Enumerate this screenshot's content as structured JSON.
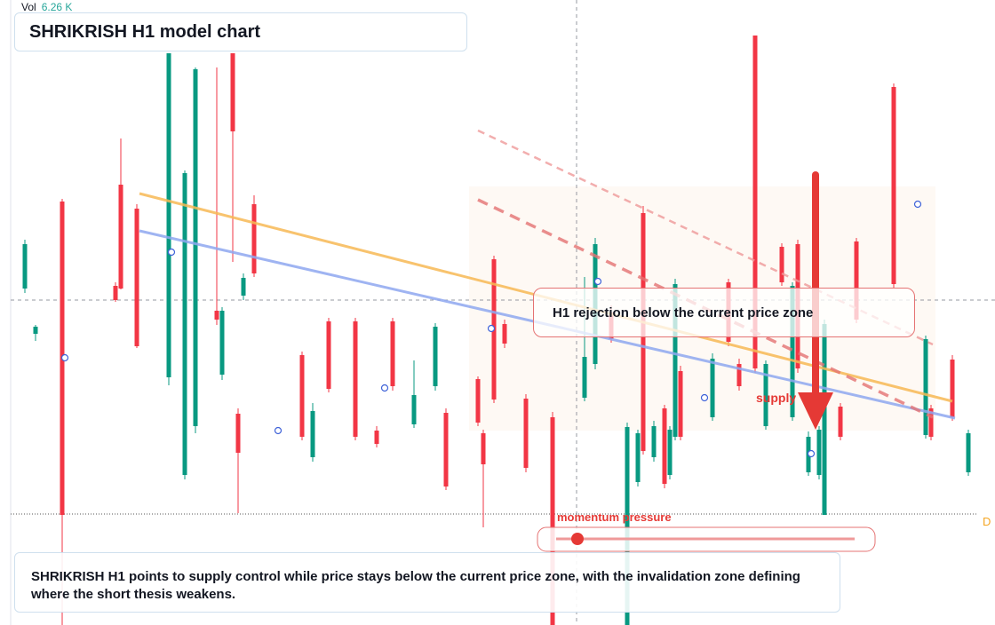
{
  "chart_data": {
    "type": "candlestick",
    "title": "SHRIKRISH H1 model chart",
    "volume_label": "Vol",
    "volume_value": "6.26 K",
    "annotations": {
      "callout": "H1 rejection below the current price zone",
      "supply": "supply",
      "momentum": "momentum pressure",
      "marker": "D"
    },
    "caption": "SHRIKRISH H1 points to supply control while price stays below the current price zone, with the invalidation zone defining where the short thesis weakens.",
    "up_color": "#089981",
    "down_color": "#f23645",
    "xlim": [
      0,
      185
    ],
    "ylim": [
      100,
      135.2
    ],
    "x": [
      3,
      5,
      10,
      20,
      21,
      24,
      30,
      33,
      35,
      39,
      40,
      42,
      43,
      44,
      46,
      55,
      57,
      60,
      65,
      69,
      72,
      76,
      80,
      82,
      88,
      89,
      91,
      93,
      97,
      102,
      108,
      110,
      113,
      116,
      118,
      119,
      121,
      123,
      124,
      125,
      126,
      132,
      135,
      137,
      140,
      142,
      145,
      147,
      148,
      150,
      152,
      153,
      156,
      159,
      166,
      172,
      173,
      177,
      180
    ],
    "open": [
      118.95,
      116.4,
      123.85,
      119.1,
      124.8,
      123.45,
      113.95,
      108.45,
      111.2,
      117.7,
      114.1,
      132.2,
      111.9,
      118.55,
      123.7,
      115.2,
      109.45,
      117.1,
      117.1,
      110.95,
      117.1,
      111.3,
      113.45,
      111.95,
      113.85,
      110.8,
      120.6,
      116.95,
      112.75,
      111.7,
      112.8,
      114.7,
      117.6,
      100.0,
      108.05,
      123.2,
      109.45,
      112.2,
      108.45,
      110.6,
      114.3,
      111.7,
      119.3,
      114.7,
      133.2,
      111.2,
      121.3,
      111.7,
      121.45,
      108.6,
      108.45,
      106.2,
      112.3,
      121.6,
      130.3,
      110.7,
      112.2,
      114.95,
      108.6
    ],
    "high": [
      121.7,
      116.9,
      124.0,
      119.3,
      127.4,
      123.7,
      132.2,
      125.6,
      131.4,
      131.4,
      117.9,
      132.2,
      112.2,
      119.8,
      124.2,
      115.4,
      112.5,
      117.3,
      117.3,
      111.2,
      117.3,
      114.9,
      117.0,
      112.2,
      114.0,
      111.0,
      120.8,
      117.2,
      113.0,
      112.0,
      119.6,
      121.8,
      118.0,
      111.4,
      111.0,
      123.6,
      111.5,
      112.4,
      111.2,
      119.5,
      114.6,
      115.3,
      119.5,
      115.0,
      133.2,
      114.9,
      121.5,
      119.3,
      121.7,
      110.9,
      111.2,
      117.2,
      112.5,
      121.8,
      130.5,
      116.3,
      112.4,
      115.2,
      111.0
    ],
    "low": [
      118.7,
      116.0,
      100.0,
      118.2,
      118.9,
      115.6,
      113.5,
      108.2,
      110.8,
      116.9,
      113.8,
      120.45,
      106.3,
      118.3,
      119.6,
      110.4,
      109.2,
      113.1,
      110.4,
      110.0,
      113.2,
      111.1,
      113.2,
      107.6,
      111.2,
      105.5,
      112.5,
      115.6,
      108.6,
      100.0,
      112.6,
      114.4,
      115.9,
      100.0,
      107.8,
      109.6,
      109.2,
      107.7,
      108.2,
      110.4,
      110.4,
      111.5,
      115.7,
      113.2,
      114.2,
      111.0,
      119.1,
      111.5,
      114.2,
      108.4,
      108.2,
      106.2,
      110.4,
      117.0,
      119.0,
      110.5,
      110.4,
      111.5,
      108.4
    ],
    "close": [
      121.45,
      116.8,
      106.2,
      118.3,
      118.95,
      115.7,
      132.2,
      125.45,
      131.3,
      117.2,
      117.7,
      127.8,
      109.7,
      119.55,
      119.8,
      110.6,
      112.05,
      113.3,
      110.6,
      110.2,
      113.45,
      112.95,
      116.8,
      107.8,
      111.4,
      109.05,
      112.7,
      115.85,
      108.85,
      100.0,
      115.1,
      121.45,
      116.1,
      111.15,
      110.8,
      109.8,
      111.2,
      107.95,
      111.0,
      119.2,
      110.6,
      115.0,
      115.95,
      113.45,
      114.45,
      114.7,
      119.3,
      119.1,
      114.45,
      110.6,
      111.0,
      116.95,
      110.6,
      117.2,
      119.2,
      116.1,
      110.6,
      111.7,
      110.8
    ]
  }
}
